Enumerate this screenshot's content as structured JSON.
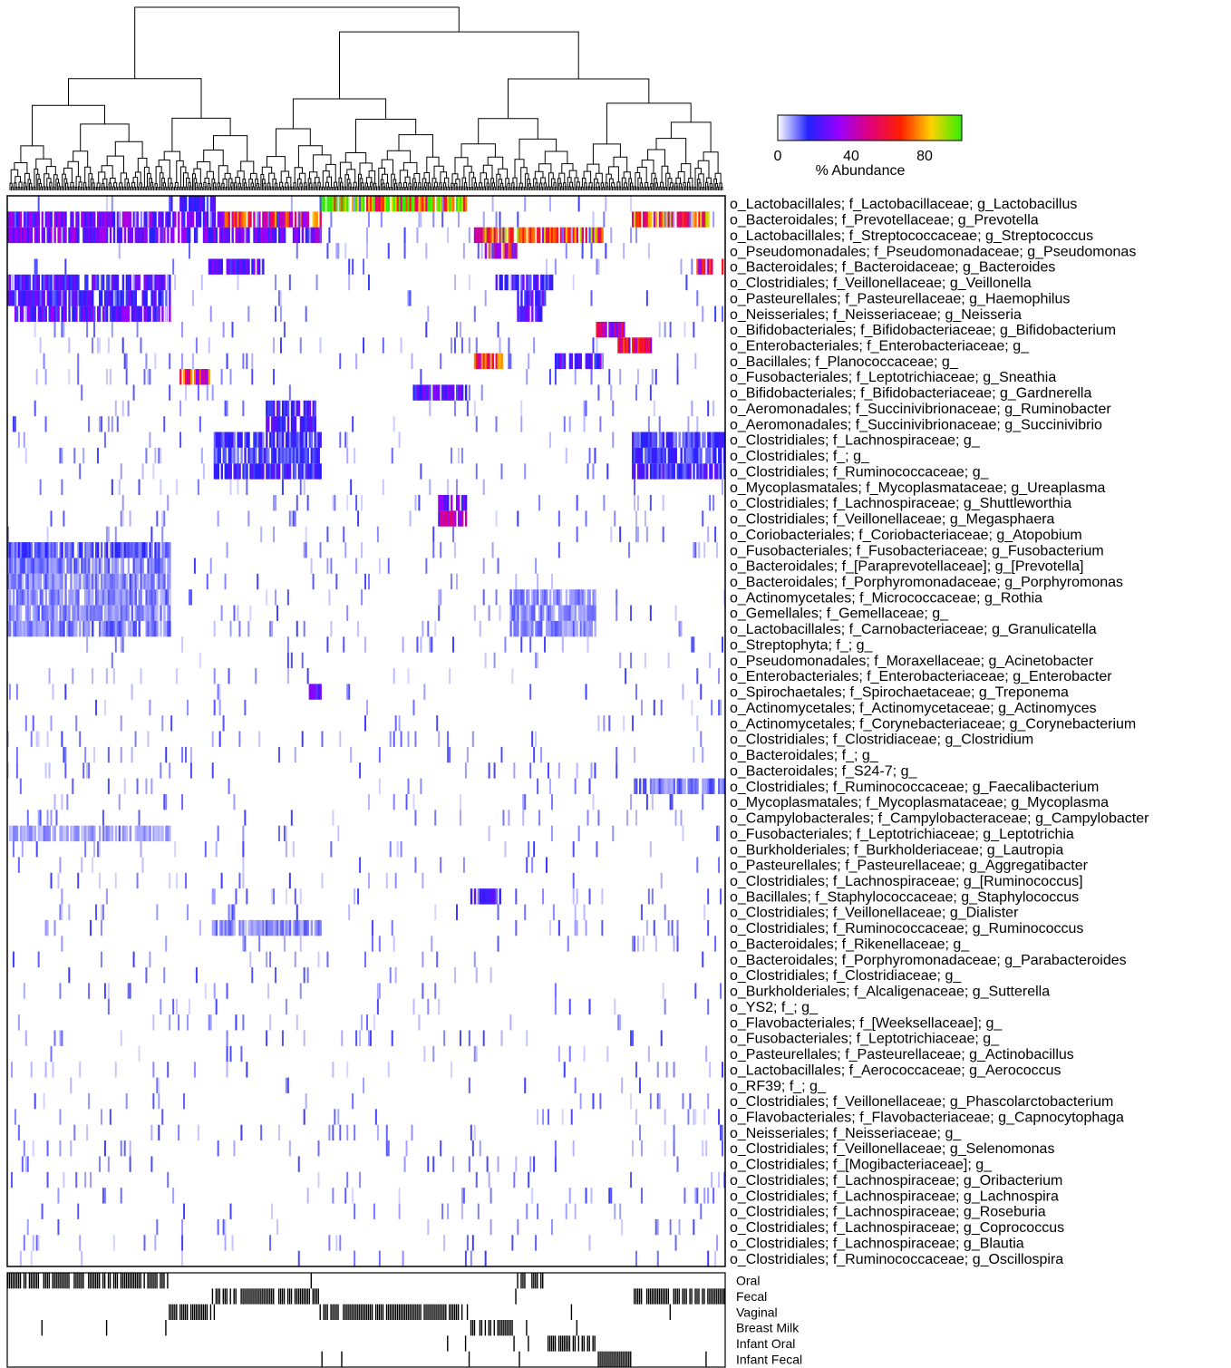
{
  "chart_data": {
    "type": "heatmap",
    "title": "",
    "color_legend": {
      "label": "% Abundance",
      "ticks": [
        "0",
        "40",
        "80"
      ],
      "range": [
        0,
        100
      ],
      "colors": [
        "#ffffff",
        "#2222ff",
        "#9a00ff",
        "#e0007a",
        "#ff1e00",
        "#ffd200",
        "#33ee00"
      ]
    },
    "rows": [
      "o_Lactobacillales; f_Lactobacillaceae; g_Lactobacillus",
      "o_Bacteroidales; f_Prevotellaceae; g_Prevotella",
      "o_Lactobacillales; f_Streptococcaceae; g_Streptococcus",
      "o_Pseudomonadales; f_Pseudomonadaceae; g_Pseudomonas",
      "o_Bacteroidales; f_Bacteroidaceae; g_Bacteroides",
      "o_Clostridiales; f_Veillonellaceae; g_Veillonella",
      "o_Pasteurellales; f_Pasteurellaceae; g_Haemophilus",
      "o_Neisseriales; f_Neisseriaceae; g_Neisseria",
      "o_Bifidobacteriales; f_Bifidobacteriaceae; g_Bifidobacterium",
      "o_Enterobacteriales; f_Enterobacteriaceae; g_",
      "o_Bacillales; f_Planococcaceae; g_",
      "o_Fusobacteriales; f_Leptotrichiaceae; g_Sneathia",
      "o_Bifidobacteriales; f_Bifidobacteriaceae; g_Gardnerella",
      "o_Aeromonadales; f_Succinivibrionaceae; g_Ruminobacter",
      "o_Aeromonadales; f_Succinivibrionaceae; g_Succinivibrio",
      "o_Clostridiales; f_Lachnospiraceae; g_",
      "o_Clostridiales; f_; g_",
      "o_Clostridiales; f_Ruminococcaceae; g_",
      "o_Mycoplasmatales; f_Mycoplasmataceae; g_Ureaplasma",
      "o_Clostridiales; f_Lachnospiraceae; g_Shuttleworthia",
      "o_Clostridiales; f_Veillonellaceae; g_Megasphaera",
      "o_Coriobacteriales; f_Coriobacteriaceae; g_Atopobium",
      "o_Fusobacteriales; f_Fusobacteriaceae; g_Fusobacterium",
      "o_Bacteroidales; f_[Paraprevotellaceae]; g_[Prevotella]",
      "o_Bacteroidales; f_Porphyromonadaceae; g_Porphyromonas",
      "o_Actinomycetales; f_Micrococcaceae; g_Rothia",
      "o_Gemellales; f_Gemellaceae; g_",
      "o_Lactobacillales; f_Carnobacteriaceae; g_Granulicatella",
      "o_Streptophyta; f_; g_",
      "o_Pseudomonadales; f_Moraxellaceae; g_Acinetobacter",
      "o_Enterobacteriales; f_Enterobacteriaceae; g_Enterobacter",
      "o_Spirochaetales; f_Spirochaetaceae; g_Treponema",
      "o_Actinomycetales; f_Actinomycetaceae; g_Actinomyces",
      "o_Actinomycetales; f_Corynebacteriaceae; g_Corynebacterium",
      "o_Clostridiales; f_Clostridiaceae; g_Clostridium",
      "o_Bacteroidales; f_; g_",
      "o_Bacteroidales; f_S24-7; g_",
      "o_Clostridiales; f_Ruminococcaceae; g_Faecalibacterium",
      "o_Mycoplasmatales; f_Mycoplasmataceae; g_Mycoplasma",
      "o_Campylobacterales; f_Campylobacteraceae; g_Campylobacter",
      "o_Fusobacteriales; f_Leptotrichiaceae; g_Leptotrichia",
      "o_Burkholderiales; f_Burkholderiaceae; g_Lautropia",
      "o_Pasteurellales; f_Pasteurellaceae; g_Aggregatibacter",
      "o_Clostridiales; f_Lachnospiraceae; g_[Ruminococcus]",
      "o_Bacillales; f_Staphylococcaceae; g_Staphylococcus",
      "o_Clostridiales; f_Veillonellaceae; g_Dialister",
      "o_Clostridiales; f_Ruminococcaceae; g_Ruminococcus",
      "o_Bacteroidales; f_Rikenellaceae; g_",
      "o_Bacteroidales; f_Porphyromonadaceae; g_Parabacteroides",
      "o_Clostridiales; f_Clostridiaceae; g_",
      "o_Burkholderiales; f_Alcaligenaceae; g_Sutterella",
      "o_YS2; f_; g_",
      "o_Flavobacteriales; f_[Weeksellaceae]; g_",
      "o_Fusobacteriales; f_Leptotrichiaceae; g_",
      "o_Pasteurellales; f_Pasteurellaceae; g_Actinobacillus",
      "o_Lactobacillales; f_Aerococcaceae; g_Aerococcus",
      "o_RF39; f_; g_",
      "o_Clostridiales; f_Veillonellaceae; g_Phascolarctobacterium",
      "o_Flavobacteriales; f_Flavobacteriaceae; g_Capnocytophaga",
      "o_Neisseriales; f_Neisseriaceae; g_",
      "o_Clostridiales; f_Veillonellaceae; g_Selenomonas",
      "o_Clostridiales; f_[Mogibacteriaceae]; g_",
      "o_Clostridiales; f_Lachnospiraceae; g_Oribacterium",
      "o_Clostridiales; f_Lachnospiraceae; g_Lachnospira",
      "o_Clostridiales; f_Lachnospiraceae; g_Roseburia",
      "o_Clostridiales; f_Lachnospiraceae; g_Coprococcus",
      "o_Clostridiales; f_Lachnospiraceae; g_Blautia",
      "o_Clostridiales; f_Ruminococcaceae; g_Oscillospira"
    ],
    "column_groups": [
      "Oral",
      "Fecal",
      "Vaginal",
      "Breast Milk",
      "Infant Oral",
      "Infant Fecal"
    ],
    "cluster_column_ranges": [
      {
        "group": "Oral",
        "from": 0.0,
        "to": 0.226
      },
      {
        "group": "Vaginal",
        "from": 0.226,
        "to": 0.286
      },
      {
        "group": "Fecal",
        "from": 0.286,
        "to": 0.436
      },
      {
        "group": "Vaginal",
        "from": 0.436,
        "to": 0.644
      },
      {
        "group": "Breast Milk",
        "from": 0.644,
        "to": 0.708
      },
      {
        "group": "Oral",
        "from": 0.708,
        "to": 0.748
      },
      {
        "group": "Infant Oral",
        "from": 0.748,
        "to": 0.82
      },
      {
        "group": "Infant Fecal",
        "from": 0.82,
        "to": 0.872
      },
      {
        "group": "Fecal",
        "from": 0.872,
        "to": 1.0
      }
    ],
    "blocks": [
      {
        "row": 0,
        "from": 0.436,
        "to": 0.64,
        "value": 88
      },
      {
        "row": 0,
        "from": 0.226,
        "to": 0.29,
        "value": 22
      },
      {
        "row": 1,
        "from": 0.0,
        "to": 0.3,
        "value": 28
      },
      {
        "row": 1,
        "from": 0.3,
        "to": 0.37,
        "value": 55
      },
      {
        "row": 1,
        "from": 0.37,
        "to": 0.436,
        "value": 58
      },
      {
        "row": 1,
        "from": 0.872,
        "to": 0.98,
        "value": 62
      },
      {
        "row": 2,
        "from": 0.0,
        "to": 0.436,
        "value": 28
      },
      {
        "row": 2,
        "from": 0.65,
        "to": 0.83,
        "value": 65
      },
      {
        "row": 3,
        "from": 0.665,
        "to": 0.71,
        "value": 55
      },
      {
        "row": 4,
        "from": 0.28,
        "to": 0.36,
        "value": 24
      },
      {
        "row": 4,
        "from": 0.96,
        "to": 1.0,
        "value": 50
      },
      {
        "row": 5,
        "from": 0.0,
        "to": 0.226,
        "value": 22
      },
      {
        "row": 5,
        "from": 0.68,
        "to": 0.76,
        "value": 20
      },
      {
        "row": 6,
        "from": 0.0,
        "to": 0.226,
        "value": 20
      },
      {
        "row": 6,
        "from": 0.71,
        "to": 0.75,
        "value": 22
      },
      {
        "row": 7,
        "from": 0.0,
        "to": 0.226,
        "value": 24
      },
      {
        "row": 7,
        "from": 0.71,
        "to": 0.75,
        "value": 24
      },
      {
        "row": 8,
        "from": 0.82,
        "to": 0.86,
        "value": 45
      },
      {
        "row": 9,
        "from": 0.85,
        "to": 0.9,
        "value": 50
      },
      {
        "row": 10,
        "from": 0.65,
        "to": 0.69,
        "value": 60
      },
      {
        "row": 10,
        "from": 0.76,
        "to": 0.83,
        "value": 24
      },
      {
        "row": 11,
        "from": 0.24,
        "to": 0.28,
        "value": 55
      },
      {
        "row": 12,
        "from": 0.56,
        "to": 0.64,
        "value": 24
      },
      {
        "row": 13,
        "from": 0.36,
        "to": 0.43,
        "value": 22
      },
      {
        "row": 14,
        "from": 0.36,
        "to": 0.43,
        "value": 22
      },
      {
        "row": 15,
        "from": 0.29,
        "to": 0.436,
        "value": 16
      },
      {
        "row": 15,
        "from": 0.872,
        "to": 1.0,
        "value": 16
      },
      {
        "row": 16,
        "from": 0.29,
        "to": 0.436,
        "value": 15
      },
      {
        "row": 16,
        "from": 0.872,
        "to": 1.0,
        "value": 15
      },
      {
        "row": 17,
        "from": 0.29,
        "to": 0.436,
        "value": 18
      },
      {
        "row": 17,
        "from": 0.872,
        "to": 1.0,
        "value": 18
      },
      {
        "row": 19,
        "from": 0.6,
        "to": 0.64,
        "value": 25
      },
      {
        "row": 20,
        "from": 0.6,
        "to": 0.64,
        "value": 35
      },
      {
        "row": 22,
        "from": 0.0,
        "to": 0.226,
        "value": 14
      },
      {
        "row": 23,
        "from": 0.0,
        "to": 0.226,
        "value": 10
      },
      {
        "row": 24,
        "from": 0.0,
        "to": 0.226,
        "value": 9
      },
      {
        "row": 25,
        "from": 0.0,
        "to": 0.226,
        "value": 9
      },
      {
        "row": 25,
        "from": 0.7,
        "to": 0.82,
        "value": 9
      },
      {
        "row": 26,
        "from": 0.0,
        "to": 0.226,
        "value": 9
      },
      {
        "row": 26,
        "from": 0.7,
        "to": 0.82,
        "value": 9
      },
      {
        "row": 27,
        "from": 0.0,
        "to": 0.226,
        "value": 10
      },
      {
        "row": 27,
        "from": 0.7,
        "to": 0.82,
        "value": 9
      },
      {
        "row": 31,
        "from": 0.42,
        "to": 0.436,
        "value": 25
      },
      {
        "row": 37,
        "from": 0.872,
        "to": 1.0,
        "value": 10
      },
      {
        "row": 40,
        "from": 0.0,
        "to": 0.226,
        "value": 7
      },
      {
        "row": 44,
        "from": 0.64,
        "to": 0.69,
        "value": 20
      },
      {
        "row": 46,
        "from": 0.29,
        "to": 0.436,
        "value": 9
      }
    ],
    "sample_annotation": {
      "rows": [
        "Oral",
        "Fecal",
        "Vaginal",
        "Breast Milk",
        "Infant Oral",
        "Infant Fecal"
      ]
    }
  }
}
